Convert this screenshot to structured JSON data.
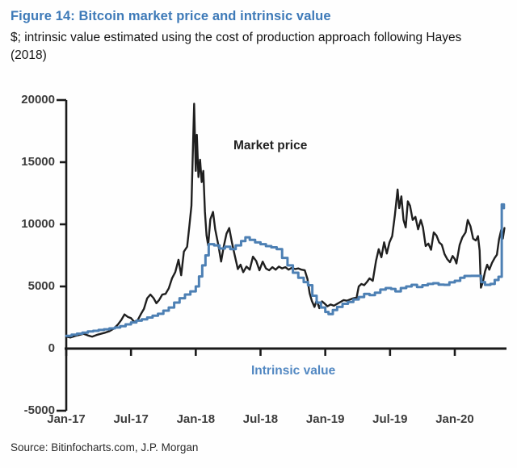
{
  "header": {
    "title": "Figure 14: Bitcoin market price and intrinsic value",
    "subtitle": "$; intrinsic value estimated using the cost of production approach following Hayes (2018)"
  },
  "annotations": {
    "market_price_label": "Market price",
    "intrinsic_value_label": "Intrinsic value"
  },
  "source": "Source: Bitinfocharts.com, J.P. Morgan",
  "colors": {
    "title_blue": "#3e7ab8",
    "market_price": "#1f1f1f",
    "intrinsic_value": "#4d80b4",
    "intrinsic_label": "#5288c2",
    "axis": "#1a1a1a",
    "tick_label": "#3c3c3c"
  },
  "chart_data": {
    "type": "line",
    "title": "Figure 14: Bitcoin market price and intrinsic value",
    "xlabel": "",
    "ylabel": "$",
    "x_unit": "months since Jan-2017",
    "ylim": [
      -5000,
      20000
    ],
    "grid": false,
    "legend_position": "inline-annotations",
    "x_ticks": [
      {
        "m": 0,
        "label": "Jan-17"
      },
      {
        "m": 6,
        "label": "Jul-17"
      },
      {
        "m": 12,
        "label": "Jan-18"
      },
      {
        "m": 18,
        "label": "Jul-18"
      },
      {
        "m": 24,
        "label": "Jan-19"
      },
      {
        "m": 30,
        "label": "Jul-19"
      },
      {
        "m": 36,
        "label": "Jan-20"
      }
    ],
    "y_ticks": [
      {
        "v": 20000,
        "label": "20000"
      },
      {
        "v": 15000,
        "label": "15000"
      },
      {
        "v": 10000,
        "label": "10000"
      },
      {
        "v": 5000,
        "label": "5000"
      },
      {
        "v": 0,
        "label": "0"
      },
      {
        "v": -5000,
        "label": "-5000"
      }
    ],
    "series": [
      {
        "name": "Market price",
        "color": "#1f1f1f",
        "width": 2.4,
        "step": false,
        "points": [
          [
            0,
            960
          ],
          [
            0.4,
            890
          ],
          [
            0.8,
            1010
          ],
          [
            1.2,
            1100
          ],
          [
            1.6,
            1190
          ],
          [
            2,
            1060
          ],
          [
            2.4,
            960
          ],
          [
            2.8,
            1090
          ],
          [
            3.2,
            1190
          ],
          [
            3.6,
            1280
          ],
          [
            4,
            1400
          ],
          [
            4.4,
            1600
          ],
          [
            4.8,
            1950
          ],
          [
            5.1,
            2300
          ],
          [
            5.4,
            2750
          ],
          [
            5.7,
            2550
          ],
          [
            6,
            2450
          ],
          [
            6.3,
            2150
          ],
          [
            6.6,
            2250
          ],
          [
            6.9,
            2750
          ],
          [
            7.2,
            3200
          ],
          [
            7.5,
            4050
          ],
          [
            7.8,
            4350
          ],
          [
            8.1,
            4050
          ],
          [
            8.35,
            3650
          ],
          [
            8.6,
            3900
          ],
          [
            8.9,
            4350
          ],
          [
            9.2,
            4400
          ],
          [
            9.5,
            4850
          ],
          [
            9.8,
            5650
          ],
          [
            10.1,
            6150
          ],
          [
            10.4,
            7150
          ],
          [
            10.65,
            5900
          ],
          [
            10.9,
            7800
          ],
          [
            11.2,
            8200
          ],
          [
            11.4,
            9800
          ],
          [
            11.6,
            11500
          ],
          [
            11.75,
            16500
          ],
          [
            11.85,
            19700
          ],
          [
            12,
            14300
          ],
          [
            12.1,
            17200
          ],
          [
            12.25,
            13800
          ],
          [
            12.4,
            15200
          ],
          [
            12.55,
            13400
          ],
          [
            12.7,
            14300
          ],
          [
            12.85,
            11000
          ],
          [
            13,
            9100
          ],
          [
            13.15,
            8300
          ],
          [
            13.35,
            10400
          ],
          [
            13.6,
            11000
          ],
          [
            13.8,
            9600
          ],
          [
            14.1,
            8300
          ],
          [
            14.35,
            7000
          ],
          [
            14.6,
            8250
          ],
          [
            14.85,
            9250
          ],
          [
            15.1,
            9700
          ],
          [
            15.35,
            8550
          ],
          [
            15.6,
            7550
          ],
          [
            15.9,
            6400
          ],
          [
            16.15,
            6750
          ],
          [
            16.4,
            6150
          ],
          [
            16.7,
            6600
          ],
          [
            17,
            6350
          ],
          [
            17.3,
            7400
          ],
          [
            17.6,
            7050
          ],
          [
            17.9,
            6300
          ],
          [
            18.2,
            7000
          ],
          [
            18.5,
            6450
          ],
          [
            18.8,
            6300
          ],
          [
            19.1,
            6550
          ],
          [
            19.4,
            6350
          ],
          [
            19.7,
            6600
          ],
          [
            20,
            6450
          ],
          [
            20.3,
            6550
          ],
          [
            20.6,
            6350
          ],
          [
            20.9,
            6500
          ],
          [
            21.2,
            6400
          ],
          [
            21.5,
            6450
          ],
          [
            21.8,
            6350
          ],
          [
            22.1,
            6300
          ],
          [
            22.35,
            5600
          ],
          [
            22.55,
            4450
          ],
          [
            22.75,
            3850
          ],
          [
            23,
            3350
          ],
          [
            23.2,
            3900
          ],
          [
            23.45,
            3250
          ],
          [
            23.7,
            3800
          ],
          [
            23.9,
            3650
          ],
          [
            24.2,
            3400
          ],
          [
            24.5,
            3550
          ],
          [
            24.8,
            3450
          ],
          [
            25.1,
            3600
          ],
          [
            25.4,
            3750
          ],
          [
            25.7,
            3900
          ],
          [
            26,
            3850
          ],
          [
            26.3,
            3950
          ],
          [
            26.6,
            4050
          ],
          [
            26.9,
            4100
          ],
          [
            27.1,
            5000
          ],
          [
            27.35,
            5200
          ],
          [
            27.6,
            5100
          ],
          [
            27.85,
            5350
          ],
          [
            28.1,
            5650
          ],
          [
            28.4,
            5450
          ],
          [
            28.7,
            7050
          ],
          [
            28.95,
            8000
          ],
          [
            29.2,
            7350
          ],
          [
            29.45,
            8550
          ],
          [
            29.7,
            7650
          ],
          [
            29.95,
            8550
          ],
          [
            30.2,
            9050
          ],
          [
            30.45,
            10750
          ],
          [
            30.7,
            12800
          ],
          [
            30.85,
            11300
          ],
          [
            31.05,
            12250
          ],
          [
            31.25,
            10350
          ],
          [
            31.45,
            9750
          ],
          [
            31.65,
            11850
          ],
          [
            31.85,
            11500
          ],
          [
            32.1,
            10350
          ],
          [
            32.35,
            10600
          ],
          [
            32.6,
            9600
          ],
          [
            32.85,
            10350
          ],
          [
            33.05,
            9750
          ],
          [
            33.3,
            8250
          ],
          [
            33.55,
            8450
          ],
          [
            33.8,
            7950
          ],
          [
            34.05,
            9350
          ],
          [
            34.3,
            9100
          ],
          [
            34.55,
            8550
          ],
          [
            34.8,
            8350
          ],
          [
            35.05,
            7600
          ],
          [
            35.3,
            7200
          ],
          [
            35.55,
            6950
          ],
          [
            35.8,
            7450
          ],
          [
            36,
            7200
          ],
          [
            36.15,
            6850
          ],
          [
            36.45,
            8350
          ],
          [
            36.7,
            8950
          ],
          [
            37,
            9350
          ],
          [
            37.2,
            10350
          ],
          [
            37.45,
            9850
          ],
          [
            37.7,
            8850
          ],
          [
            37.95,
            8700
          ],
          [
            38.15,
            9050
          ],
          [
            38.3,
            7900
          ],
          [
            38.42,
            4900
          ],
          [
            38.6,
            5350
          ],
          [
            38.8,
            6200
          ],
          [
            39,
            6750
          ],
          [
            39.2,
            6350
          ],
          [
            39.45,
            6900
          ],
          [
            39.7,
            7300
          ],
          [
            39.9,
            7550
          ],
          [
            40.1,
            8800
          ],
          [
            40.3,
            9550
          ],
          [
            40.45,
            8850
          ],
          [
            40.6,
            9700
          ]
        ]
      },
      {
        "name": "Intrinsic value",
        "color": "#4d80b4",
        "width": 3,
        "step": true,
        "points": [
          [
            0,
            1020
          ],
          [
            0.5,
            1120
          ],
          [
            1,
            1200
          ],
          [
            1.5,
            1280
          ],
          [
            2,
            1380
          ],
          [
            2.5,
            1430
          ],
          [
            3,
            1500
          ],
          [
            3.5,
            1550
          ],
          [
            4,
            1620
          ],
          [
            4.5,
            1700
          ],
          [
            5,
            1800
          ],
          [
            5.5,
            1950
          ],
          [
            6,
            2100
          ],
          [
            6.5,
            2250
          ],
          [
            7,
            2350
          ],
          [
            7.5,
            2500
          ],
          [
            8,
            2650
          ],
          [
            8.5,
            2800
          ],
          [
            9,
            3050
          ],
          [
            9.5,
            3300
          ],
          [
            10,
            3700
          ],
          [
            10.5,
            4050
          ],
          [
            11,
            4350
          ],
          [
            11.5,
            4600
          ],
          [
            12,
            5000
          ],
          [
            12.3,
            5800
          ],
          [
            12.6,
            6700
          ],
          [
            12.9,
            7500
          ],
          [
            13.2,
            8400
          ],
          [
            13.7,
            8300
          ],
          [
            14.2,
            8050
          ],
          [
            14.7,
            8200
          ],
          [
            15.2,
            8000
          ],
          [
            15.7,
            8300
          ],
          [
            16.2,
            8650
          ],
          [
            16.6,
            8950
          ],
          [
            17,
            8750
          ],
          [
            17.5,
            8550
          ],
          [
            18,
            8400
          ],
          [
            18.5,
            8250
          ],
          [
            19,
            8150
          ],
          [
            19.5,
            8000
          ],
          [
            20,
            7300
          ],
          [
            20.5,
            6700
          ],
          [
            21,
            6100
          ],
          [
            21.5,
            5700
          ],
          [
            22,
            5350
          ],
          [
            22.4,
            5100
          ],
          [
            22.8,
            4250
          ],
          [
            23.2,
            3700
          ],
          [
            23.6,
            3300
          ],
          [
            24,
            2950
          ],
          [
            24.3,
            2780
          ],
          [
            24.7,
            3100
          ],
          [
            25.1,
            3350
          ],
          [
            25.6,
            3600
          ],
          [
            26.1,
            3750
          ],
          [
            26.6,
            3950
          ],
          [
            27.1,
            4150
          ],
          [
            27.6,
            4400
          ],
          [
            28.1,
            4300
          ],
          [
            28.6,
            4500
          ],
          [
            29.1,
            4750
          ],
          [
            29.6,
            4870
          ],
          [
            30.1,
            4800
          ],
          [
            30.5,
            4600
          ],
          [
            31,
            4870
          ],
          [
            31.5,
            5000
          ],
          [
            32,
            5130
          ],
          [
            32.5,
            4950
          ],
          [
            33,
            5100
          ],
          [
            33.5,
            5200
          ],
          [
            34,
            5260
          ],
          [
            34.5,
            5150
          ],
          [
            35,
            5130
          ],
          [
            35.5,
            5330
          ],
          [
            36,
            5455
          ],
          [
            36.5,
            5700
          ],
          [
            36.9,
            5845
          ],
          [
            37.5,
            5850
          ],
          [
            38.1,
            5850
          ],
          [
            38.45,
            5350
          ],
          [
            38.8,
            5130
          ],
          [
            39.3,
            5200
          ],
          [
            39.7,
            5520
          ],
          [
            40.05,
            5780
          ],
          [
            40.3,
            5780
          ],
          [
            40.35,
            11600
          ],
          [
            40.55,
            11300
          ]
        ]
      }
    ]
  }
}
